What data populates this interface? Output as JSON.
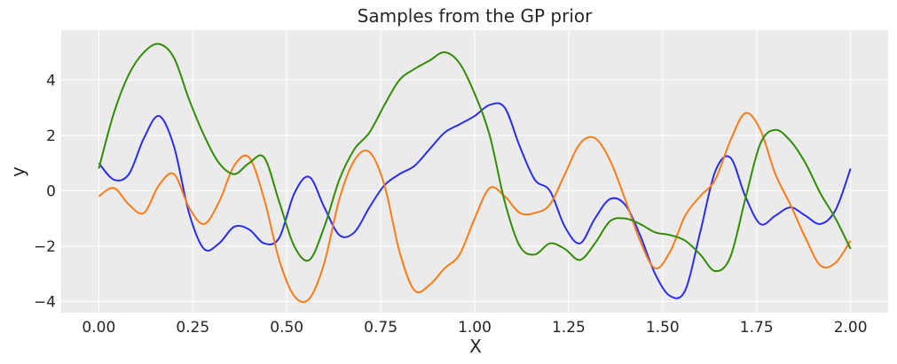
{
  "chart_data": {
    "type": "line",
    "title": "Samples from the GP prior",
    "xlabel": "X",
    "ylabel": "y",
    "xlim": [
      -0.1,
      2.1
    ],
    "ylim": [
      -4.4,
      5.8
    ],
    "xticks": [
      0.0,
      0.25,
      0.5,
      0.75,
      1.0,
      1.25,
      1.5,
      1.75,
      2.0
    ],
    "xtick_labels": [
      "0.00",
      "0.25",
      "0.50",
      "0.75",
      "1.00",
      "1.25",
      "1.50",
      "1.75",
      "2.00"
    ],
    "yticks": [
      -4,
      -2,
      0,
      2,
      4
    ],
    "ytick_labels": [
      "−4",
      "−2",
      "0",
      "2",
      "4"
    ],
    "grid": true,
    "legend": "none",
    "colors": {
      "background": "#ebebeb",
      "grid": "#ffffff"
    },
    "series": [
      {
        "color": "#2a2eec",
        "x": [
          0.0,
          0.04,
          0.08,
          0.12,
          0.16,
          0.2,
          0.24,
          0.28,
          0.32,
          0.36,
          0.4,
          0.44,
          0.48,
          0.52,
          0.56,
          0.6,
          0.64,
          0.68,
          0.72,
          0.76,
          0.8,
          0.84,
          0.88,
          0.92,
          0.96,
          1.0,
          1.04,
          1.08,
          1.12,
          1.16,
          1.2,
          1.24,
          1.28,
          1.32,
          1.36,
          1.4,
          1.44,
          1.48,
          1.52,
          1.56,
          1.6,
          1.64,
          1.68,
          1.72,
          1.76,
          1.8,
          1.84,
          1.88,
          1.92,
          1.96,
          2.0
        ],
        "y": [
          1.0,
          0.4,
          0.6,
          1.9,
          2.7,
          1.6,
          -0.8,
          -2.1,
          -1.9,
          -1.3,
          -1.4,
          -1.9,
          -1.7,
          -0.1,
          0.5,
          -0.6,
          -1.6,
          -1.5,
          -0.6,
          0.2,
          0.6,
          0.9,
          1.5,
          2.1,
          2.4,
          2.7,
          3.1,
          3.0,
          1.6,
          0.4,
          0.0,
          -1.3,
          -1.9,
          -1.0,
          -0.3,
          -0.5,
          -1.6,
          -3.0,
          -3.8,
          -3.6,
          -1.5,
          0.7,
          1.2,
          -0.2,
          -1.2,
          -0.9,
          -0.6,
          -0.9,
          -1.2,
          -0.7,
          0.8
        ]
      },
      {
        "color": "#fa7c17",
        "x": [
          0.0,
          0.04,
          0.08,
          0.12,
          0.16,
          0.2,
          0.24,
          0.28,
          0.32,
          0.36,
          0.4,
          0.44,
          0.48,
          0.52,
          0.56,
          0.6,
          0.64,
          0.68,
          0.72,
          0.76,
          0.8,
          0.84,
          0.88,
          0.92,
          0.96,
          1.0,
          1.04,
          1.08,
          1.12,
          1.16,
          1.2,
          1.24,
          1.28,
          1.32,
          1.36,
          1.4,
          1.44,
          1.48,
          1.52,
          1.56,
          1.6,
          1.64,
          1.68,
          1.72,
          1.76,
          1.8,
          1.84,
          1.88,
          1.92,
          1.96,
          2.0
        ],
        "y": [
          -0.2,
          0.1,
          -0.5,
          -0.8,
          0.2,
          0.6,
          -0.6,
          -1.2,
          -0.4,
          0.9,
          1.2,
          -0.3,
          -2.5,
          -3.8,
          -3.9,
          -2.6,
          -0.3,
          1.1,
          1.4,
          0.2,
          -2.2,
          -3.6,
          -3.4,
          -2.8,
          -2.3,
          -1.0,
          0.1,
          -0.2,
          -0.8,
          -0.8,
          -0.5,
          0.6,
          1.7,
          1.9,
          1.1,
          -0.3,
          -1.8,
          -2.8,
          -2.2,
          -0.9,
          -0.2,
          0.4,
          1.8,
          2.8,
          2.2,
          0.6,
          -0.5,
          -1.7,
          -2.7,
          -2.6,
          -1.8
        ]
      },
      {
        "color": "#328c06",
        "x": [
          0.0,
          0.04,
          0.08,
          0.12,
          0.16,
          0.2,
          0.24,
          0.28,
          0.32,
          0.36,
          0.4,
          0.44,
          0.48,
          0.52,
          0.56,
          0.6,
          0.64,
          0.68,
          0.72,
          0.76,
          0.8,
          0.84,
          0.88,
          0.92,
          0.96,
          1.0,
          1.04,
          1.08,
          1.12,
          1.16,
          1.2,
          1.24,
          1.28,
          1.32,
          1.36,
          1.4,
          1.44,
          1.48,
          1.52,
          1.56,
          1.6,
          1.64,
          1.68,
          1.72,
          1.76,
          1.8,
          1.84,
          1.88,
          1.92,
          1.96,
          2.0
        ],
        "y": [
          0.8,
          2.8,
          4.2,
          5.0,
          5.3,
          4.8,
          3.3,
          2.0,
          1.0,
          0.6,
          1.0,
          1.2,
          -0.4,
          -2.0,
          -2.5,
          -1.3,
          0.4,
          1.5,
          2.1,
          3.1,
          4.0,
          4.4,
          4.7,
          5.0,
          4.6,
          3.5,
          2.0,
          -0.4,
          -2.0,
          -2.3,
          -1.9,
          -2.1,
          -2.5,
          -1.9,
          -1.1,
          -1.0,
          -1.2,
          -1.5,
          -1.6,
          -1.8,
          -2.3,
          -2.9,
          -2.4,
          -0.3,
          1.7,
          2.2,
          1.8,
          1.0,
          -0.1,
          -1.0,
          -2.1
        ]
      }
    ]
  }
}
